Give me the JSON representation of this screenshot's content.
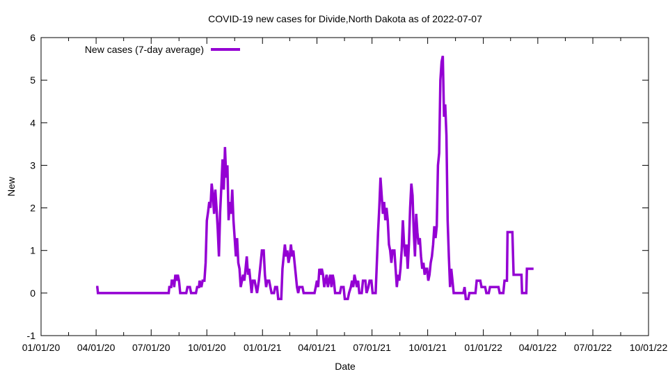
{
  "chart_data": {
    "type": "line",
    "title": "COVID-19 new cases for Divide,North Dakota as of 2022-07-07",
    "xlabel": "Date",
    "ylabel": "New",
    "xlim_days": [
      0,
      1004
    ],
    "ylim": [
      -1,
      6
    ],
    "x_ticks": [
      {
        "label": "01/01/20",
        "day": 0
      },
      {
        "label": "04/01/20",
        "day": 91
      },
      {
        "label": "07/01/20",
        "day": 182
      },
      {
        "label": "10/01/20",
        "day": 274
      },
      {
        "label": "01/01/21",
        "day": 366
      },
      {
        "label": "04/01/21",
        "day": 456
      },
      {
        "label": "07/01/21",
        "day": 547
      },
      {
        "label": "10/01/21",
        "day": 639
      },
      {
        "label": "01/01/22",
        "day": 731
      },
      {
        "label": "04/01/22",
        "day": 821
      },
      {
        "label": "07/01/22",
        "day": 912
      },
      {
        "label": "10/01/22",
        "day": 1004
      }
    ],
    "y_ticks": [
      {
        "label": "-1",
        "value": -1
      },
      {
        "label": "0",
        "value": 0
      },
      {
        "label": "1",
        "value": 1
      },
      {
        "label": "2",
        "value": 2
      },
      {
        "label": "3",
        "value": 3
      },
      {
        "label": "4",
        "value": 4
      },
      {
        "label": "5",
        "value": 5
      },
      {
        "label": "6",
        "value": 6
      }
    ],
    "legend": {
      "position": "top-left"
    },
    "series": [
      {
        "name": "New cases (7-day average)",
        "color": "#9400d3",
        "points": [
          [
            91,
            0.14
          ],
          [
            93,
            0.14
          ],
          [
            94,
            0
          ],
          [
            150,
            0
          ],
          [
            205,
            0
          ],
          [
            211,
            0
          ],
          [
            212,
            0.14
          ],
          [
            215,
            0.14
          ],
          [
            216,
            0.29
          ],
          [
            219,
            0.29
          ],
          [
            220,
            0.14
          ],
          [
            222,
            0.43
          ],
          [
            224,
            0.29
          ],
          [
            226,
            0.43
          ],
          [
            228,
            0.29
          ],
          [
            230,
            0
          ],
          [
            240,
            0
          ],
          [
            242,
            0.14
          ],
          [
            246,
            0.14
          ],
          [
            248,
            0
          ],
          [
            256,
            0
          ],
          [
            258,
            0.14
          ],
          [
            261,
            0.14
          ],
          [
            262,
            0.29
          ],
          [
            265,
            0.14
          ],
          [
            267,
            0.29
          ],
          [
            270,
            0.29
          ],
          [
            272,
            0.71
          ],
          [
            274,
            1.7
          ],
          [
            276,
            1.9
          ],
          [
            278,
            2.14
          ],
          [
            280,
            2
          ],
          [
            282,
            2.57
          ],
          [
            284,
            2.3
          ],
          [
            286,
            1.86
          ],
          [
            288,
            2.43
          ],
          [
            290,
            2
          ],
          [
            292,
            1.5
          ],
          [
            294,
            0.86
          ],
          [
            296,
            1.9
          ],
          [
            298,
            2.5
          ],
          [
            300,
            3.14
          ],
          [
            302,
            2.43
          ],
          [
            304,
            3.43
          ],
          [
            306,
            2.71
          ],
          [
            308,
            3
          ],
          [
            310,
            1.71
          ],
          [
            312,
            2.14
          ],
          [
            314,
            1.86
          ],
          [
            316,
            2.43
          ],
          [
            318,
            1.71
          ],
          [
            320,
            1.29
          ],
          [
            322,
            0.86
          ],
          [
            324,
            1.29
          ],
          [
            326,
            0.71
          ],
          [
            328,
            0.57
          ],
          [
            330,
            0.14
          ],
          [
            332,
            0.29
          ],
          [
            334,
            0.43
          ],
          [
            336,
            0.29
          ],
          [
            338,
            0.57
          ],
          [
            340,
            0.86
          ],
          [
            342,
            0.43
          ],
          [
            344,
            0.57
          ],
          [
            346,
            0.29
          ],
          [
            348,
            0
          ],
          [
            350,
            0.29
          ],
          [
            353,
            0.29
          ],
          [
            355,
            0.14
          ],
          [
            357,
            0
          ],
          [
            360,
            0.29
          ],
          [
            363,
            0.71
          ],
          [
            365,
            1
          ],
          [
            368,
            1
          ],
          [
            370,
            0.43
          ],
          [
            372,
            0.14
          ],
          [
            374,
            0.29
          ],
          [
            377,
            0.29
          ],
          [
            379,
            0.14
          ],
          [
            381,
            0
          ],
          [
            385,
            0
          ],
          [
            387,
            0.14
          ],
          [
            390,
            0.14
          ],
          [
            392,
            -0.14
          ],
          [
            397,
            -0.14
          ],
          [
            399,
            0.57
          ],
          [
            401,
            0.86
          ],
          [
            403,
            1.14
          ],
          [
            405,
            0.86
          ],
          [
            407,
            1
          ],
          [
            409,
            0.71
          ],
          [
            411,
            0.86
          ],
          [
            413,
            1.14
          ],
          [
            415,
            0.86
          ],
          [
            417,
            1
          ],
          [
            419,
            0.71
          ],
          [
            421,
            0.43
          ],
          [
            423,
            0.14
          ],
          [
            425,
            0
          ],
          [
            427,
            0.14
          ],
          [
            432,
            0.14
          ],
          [
            434,
            0
          ],
          [
            452,
            0
          ],
          [
            454,
            0.14
          ],
          [
            456,
            0.29
          ],
          [
            458,
            0.14
          ],
          [
            460,
            0.57
          ],
          [
            462,
            0.43
          ],
          [
            464,
            0.57
          ],
          [
            466,
            0.43
          ],
          [
            468,
            0.14
          ],
          [
            470,
            0.29
          ],
          [
            472,
            0.43
          ],
          [
            474,
            0.14
          ],
          [
            476,
            0.29
          ],
          [
            478,
            0.43
          ],
          [
            480,
            0.14
          ],
          [
            482,
            0.43
          ],
          [
            484,
            0.29
          ],
          [
            486,
            0
          ],
          [
            494,
            0
          ],
          [
            496,
            0.14
          ],
          [
            500,
            0.14
          ],
          [
            502,
            -0.14
          ],
          [
            507,
            -0.14
          ],
          [
            509,
            0
          ],
          [
            512,
            0.14
          ],
          [
            514,
            0.29
          ],
          [
            516,
            0.14
          ],
          [
            518,
            0.43
          ],
          [
            520,
            0.29
          ],
          [
            522,
            0.14
          ],
          [
            524,
            0.29
          ],
          [
            526,
            0
          ],
          [
            530,
            0
          ],
          [
            532,
            0.29
          ],
          [
            536,
            0.29
          ],
          [
            538,
            0
          ],
          [
            541,
            0.14
          ],
          [
            543,
            0.29
          ],
          [
            546,
            0.29
          ],
          [
            548,
            0
          ],
          [
            553,
            0
          ],
          [
            555,
            0.71
          ],
          [
            557,
            1.43
          ],
          [
            559,
            2
          ],
          [
            561,
            2.71
          ],
          [
            563,
            2.29
          ],
          [
            565,
            1.86
          ],
          [
            567,
            2.14
          ],
          [
            569,
            1.71
          ],
          [
            571,
            2
          ],
          [
            573,
            1.71
          ],
          [
            575,
            1.14
          ],
          [
            577,
            1
          ],
          [
            579,
            0.71
          ],
          [
            581,
            1
          ],
          [
            584,
            1
          ],
          [
            586,
            0.57
          ],
          [
            588,
            0.14
          ],
          [
            590,
            0.43
          ],
          [
            592,
            0.29
          ],
          [
            594,
            0.57
          ],
          [
            596,
            1
          ],
          [
            598,
            1.71
          ],
          [
            600,
            1.14
          ],
          [
            602,
            0.86
          ],
          [
            604,
            1.14
          ],
          [
            606,
            0.57
          ],
          [
            608,
            1.14
          ],
          [
            610,
            2
          ],
          [
            612,
            2.57
          ],
          [
            614,
            2.29
          ],
          [
            616,
            1.43
          ],
          [
            618,
            0.86
          ],
          [
            620,
            1.86
          ],
          [
            622,
            1.43
          ],
          [
            624,
            1.14
          ],
          [
            626,
            1.29
          ],
          [
            628,
            0.86
          ],
          [
            630,
            0.57
          ],
          [
            632,
            0.71
          ],
          [
            634,
            0.43
          ],
          [
            636,
            0.57
          ],
          [
            638,
            0.57
          ],
          [
            640,
            0.29
          ],
          [
            642,
            0.43
          ],
          [
            644,
            0.71
          ],
          [
            646,
            0.86
          ],
          [
            648,
            1.14
          ],
          [
            650,
            1.57
          ],
          [
            652,
            1.29
          ],
          [
            654,
            1.57
          ],
          [
            656,
            3
          ],
          [
            658,
            3.29
          ],
          [
            660,
            5
          ],
          [
            662,
            5.43
          ],
          [
            664,
            5.57
          ],
          [
            666,
            4.14
          ],
          [
            668,
            4.43
          ],
          [
            670,
            3.71
          ],
          [
            672,
            1.71
          ],
          [
            674,
            0.86
          ],
          [
            676,
            0.14
          ],
          [
            678,
            0.57
          ],
          [
            680,
            0.29
          ],
          [
            682,
            0
          ],
          [
            698,
            0
          ],
          [
            700,
            0.14
          ],
          [
            702,
            -0.14
          ],
          [
            706,
            -0.14
          ],
          [
            708,
            0
          ],
          [
            718,
            0
          ],
          [
            720,
            0.29
          ],
          [
            726,
            0.29
          ],
          [
            728,
            0.14
          ],
          [
            734,
            0.14
          ],
          [
            736,
            0
          ],
          [
            740,
            0
          ],
          [
            742,
            0.14
          ],
          [
            756,
            0.14
          ],
          [
            758,
            0
          ],
          [
            764,
            0
          ],
          [
            766,
            0.29
          ],
          [
            770,
            0.29
          ],
          [
            771,
            1.43
          ],
          [
            779,
            1.43
          ],
          [
            781,
            0.43
          ],
          [
            794,
            0.43
          ],
          [
            795,
            0
          ],
          [
            802,
            0
          ],
          [
            803,
            0.57
          ],
          [
            814,
            0.57
          ]
        ]
      }
    ]
  }
}
